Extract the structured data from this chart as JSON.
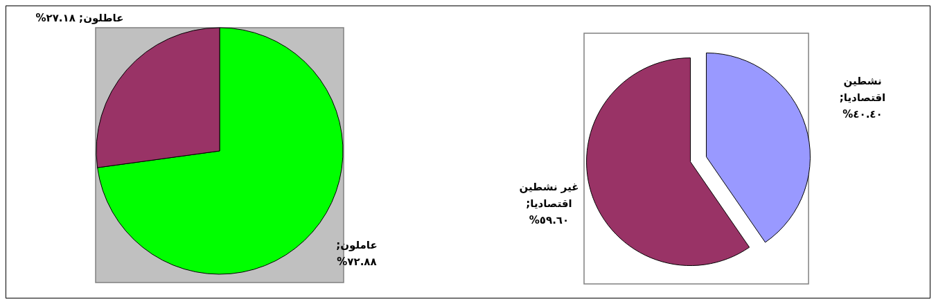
{
  "chart_data": [
    {
      "type": "pie",
      "categories": [
        "عاملون",
        "عاطلون"
      ],
      "values": [
        72.88,
        27.18
      ],
      "colors": [
        "#00ff00",
        "#993366"
      ],
      "value_labels": [
        "; ٧٢.٨٨%",
        "; ٢٧.١٨%"
      ]
    },
    {
      "type": "pie",
      "categories": [
        "نشطين اقتصاديا",
        "غير نشطين اقتصاديا"
      ],
      "values": [
        40.4,
        59.6
      ],
      "colors": [
        "#9999ff",
        "#993366"
      ],
      "value_labels": [
        "; ٤٠.٤٠%",
        "; ٥٩.٦٠%"
      ]
    }
  ]
}
